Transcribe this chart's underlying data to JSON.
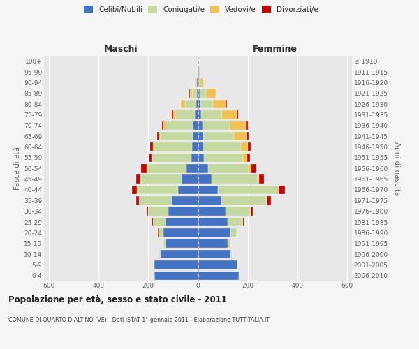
{
  "age_groups": [
    "0-4",
    "5-9",
    "10-14",
    "15-19",
    "20-24",
    "25-29",
    "30-34",
    "35-39",
    "40-44",
    "45-49",
    "50-54",
    "55-59",
    "60-64",
    "65-69",
    "70-74",
    "75-79",
    "80-84",
    "85-89",
    "90-94",
    "95-99",
    "100+"
  ],
  "birth_years": [
    "2006-2010",
    "2001-2005",
    "1996-2000",
    "1991-1995",
    "1986-1990",
    "1981-1985",
    "1976-1980",
    "1971-1975",
    "1966-1970",
    "1961-1965",
    "1956-1960",
    "1951-1955",
    "1946-1950",
    "1941-1945",
    "1936-1940",
    "1931-1935",
    "1926-1930",
    "1921-1925",
    "1916-1920",
    "1911-1915",
    "≤ 1910"
  ],
  "male_celibi": [
    175,
    175,
    150,
    130,
    140,
    130,
    120,
    105,
    80,
    65,
    45,
    28,
    25,
    22,
    20,
    12,
    8,
    5,
    3,
    2,
    2
  ],
  "male_coniugati": [
    2,
    3,
    5,
    10,
    20,
    50,
    80,
    130,
    165,
    165,
    160,
    155,
    150,
    130,
    110,
    80,
    45,
    18,
    5,
    2,
    0
  ],
  "male_vedovi": [
    0,
    0,
    0,
    0,
    0,
    1,
    1,
    2,
    2,
    2,
    3,
    4,
    5,
    5,
    8,
    8,
    15,
    10,
    4,
    1,
    0
  ],
  "male_divorziati": [
    0,
    0,
    0,
    1,
    3,
    5,
    5,
    12,
    18,
    18,
    20,
    12,
    12,
    8,
    8,
    5,
    2,
    1,
    0,
    0,
    0
  ],
  "female_celibi": [
    165,
    160,
    130,
    120,
    130,
    120,
    110,
    95,
    80,
    55,
    40,
    25,
    22,
    20,
    18,
    12,
    10,
    8,
    5,
    3,
    2
  ],
  "female_coniugati": [
    2,
    3,
    5,
    10,
    25,
    60,
    100,
    180,
    240,
    185,
    165,
    155,
    150,
    125,
    110,
    85,
    50,
    25,
    5,
    2,
    0
  ],
  "female_vedovi": [
    0,
    0,
    0,
    0,
    1,
    1,
    2,
    3,
    5,
    5,
    10,
    18,
    28,
    50,
    65,
    60,
    55,
    40,
    12,
    3,
    0
  ],
  "female_divorziati": [
    0,
    0,
    0,
    1,
    3,
    5,
    8,
    15,
    25,
    20,
    20,
    12,
    12,
    8,
    8,
    5,
    3,
    2,
    0,
    0,
    0
  ],
  "colors": {
    "celibi": "#4472c4",
    "coniugati": "#c5d8a0",
    "vedovi": "#f0c050",
    "divorziati": "#cc0000"
  },
  "title_main": "Popolazione per età, sesso e stato civile - 2011",
  "title_sub": "COMUNE DI QUARTO D'ALTINO (VE) - Dati ISTAT 1° gennaio 2011 - Elaborazione TUTTITALIA.IT",
  "label_maschi": "Maschi",
  "label_femmine": "Femmine",
  "ylabel_left": "Fasce di età",
  "ylabel_right": "Anni di nascita",
  "xlim": 620,
  "xtick_vals": [
    -600,
    -400,
    -200,
    0,
    200,
    400,
    600
  ],
  "legend_labels": [
    "Celibi/Nubili",
    "Coniugati/e",
    "Vedovi/e",
    "Divorziati/e"
  ],
  "bg_color": "#f5f5f5",
  "plot_bg": "#e8e8e8"
}
